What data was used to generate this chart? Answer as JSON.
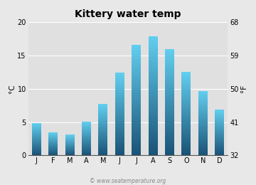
{
  "title": "Kittery water temp",
  "months": [
    "J",
    "F",
    "M",
    "A",
    "M",
    "J",
    "J",
    "A",
    "S",
    "O",
    "N",
    "D"
  ],
  "values_c": [
    4.9,
    3.5,
    3.1,
    5.1,
    7.7,
    12.4,
    16.6,
    17.9,
    16.0,
    12.5,
    9.7,
    6.9
  ],
  "ylabel_left": "°C",
  "ylabel_right": "°F",
  "ylim_c": [
    0,
    20
  ],
  "yticks_c": [
    0,
    5,
    10,
    15,
    20
  ],
  "yticks_f": [
    32,
    41,
    50,
    59,
    68
  ],
  "bar_color_top": "#62cff0",
  "bar_color_bottom": "#1a5276",
  "bg_color": "#e8e8e8",
  "plot_bg_color": "#e0e0e0",
  "title_fontsize": 10,
  "axis_fontsize": 7.5,
  "tick_fontsize": 7,
  "bar_width": 0.55,
  "watermark": "© www.seatemperature.org"
}
